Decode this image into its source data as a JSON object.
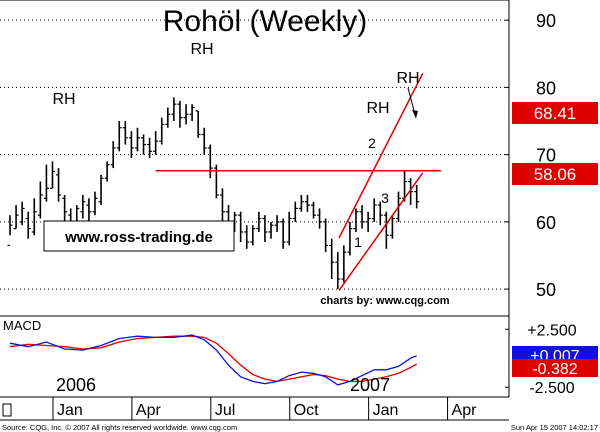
{
  "chart_data": {
    "type": "ohlc",
    "title": "Rohöl (Weekly)",
    "website": "www.ross-trading.de",
    "credit": "charts by: www.cqg.com",
    "footer_left": "Source: CQG, Inc. © 2007 All rights reserved worldwide. www.cqg.com",
    "footer_right": "Sun Apr 15 2007 14:02:17",
    "y_ticks": [
      90,
      80,
      70,
      60,
      50
    ],
    "ylim": [
      46,
      93
    ],
    "x_month_labels": [
      "Jan",
      "Apr",
      "Jul",
      "Oct",
      "Jan",
      "Apr"
    ],
    "year_labels": [
      "2006",
      "2007"
    ],
    "price_labels": [
      {
        "value": "68.41",
        "color": "#e00000"
      },
      {
        "value": "58.06",
        "color": "#e00000"
      }
    ],
    "annotations": [
      "RH",
      "RH",
      "RH",
      "RH",
      "1",
      "2",
      "3"
    ],
    "resistance_level": 67.6,
    "weekly_bars": [
      [
        56.5,
        59.5,
        61.0,
        58.0
      ],
      [
        59.0,
        61.0,
        62.5,
        59.0
      ],
      [
        60.0,
        62.0,
        63.0,
        59.5
      ],
      [
        60.5,
        59.0,
        61.5,
        57.5
      ],
      [
        58.5,
        61.5,
        63.5,
        58.0
      ],
      [
        61.0,
        64.0,
        66.0,
        60.5
      ],
      [
        63.5,
        65.0,
        68.5,
        63.0
      ],
      [
        65.0,
        67.5,
        69.0,
        65.0
      ],
      [
        67.0,
        64.0,
        68.0,
        63.0
      ],
      [
        63.5,
        61.5,
        64.0,
        60.0
      ],
      [
        61.0,
        60.0,
        62.0,
        58.5
      ],
      [
        60.0,
        62.0,
        62.5,
        59.0
      ],
      [
        61.5,
        63.0,
        64.0,
        60.5
      ],
      [
        62.5,
        61.5,
        63.5,
        60.0
      ],
      [
        61.5,
        63.5,
        64.5,
        61.0
      ],
      [
        63.0,
        66.5,
        67.0,
        62.5
      ],
      [
        66.5,
        68.5,
        69.0,
        66.0
      ],
      [
        68.5,
        71.0,
        72.0,
        68.0
      ],
      [
        71.0,
        74.0,
        75.0,
        70.5
      ],
      [
        74.0,
        72.5,
        75.0,
        71.5
      ],
      [
        72.5,
        71.0,
        73.5,
        69.5
      ],
      [
        71.0,
        72.5,
        74.0,
        70.5
      ],
      [
        72.5,
        71.5,
        73.0,
        70.0
      ],
      [
        71.5,
        70.5,
        72.5,
        69.5
      ],
      [
        70.5,
        72.0,
        73.5,
        70.0
      ],
      [
        72.0,
        74.5,
        75.5,
        71.5
      ],
      [
        74.5,
        76.0,
        77.0,
        74.0
      ],
      [
        76.0,
        77.5,
        78.5,
        75.0
      ],
      [
        77.5,
        75.5,
        78.0,
        74.0
      ],
      [
        75.5,
        76.0,
        77.5,
        74.5
      ],
      [
        76.0,
        77.0,
        77.5,
        75.0
      ],
      [
        76.5,
        73.0,
        76.5,
        72.5
      ],
      [
        73.0,
        71.0,
        74.0,
        70.0
      ],
      [
        71.0,
        68.0,
        71.5,
        66.5
      ],
      [
        68.0,
        64.0,
        68.5,
        63.5
      ],
      [
        64.0,
        61.5,
        65.0,
        60.0
      ],
      [
        61.5,
        59.5,
        62.5,
        58.5
      ],
      [
        59.5,
        61.0,
        61.5,
        58.5
      ],
      [
        61.0,
        58.5,
        61.5,
        57.0
      ],
      [
        58.5,
        57.0,
        59.5,
        56.0
      ],
      [
        57.0,
        59.0,
        59.5,
        56.5
      ],
      [
        59.0,
        60.5,
        61.5,
        58.5
      ],
      [
        60.5,
        58.5,
        61.0,
        57.0
      ],
      [
        58.5,
        59.5,
        60.0,
        57.5
      ],
      [
        59.5,
        60.0,
        61.0,
        58.5
      ],
      [
        60.0,
        57.0,
        60.5,
        56.0
      ],
      [
        57.0,
        60.5,
        61.5,
        56.5
      ],
      [
        60.5,
        62.0,
        63.0,
        60.0
      ],
      [
        62.0,
        63.0,
        64.0,
        61.5
      ],
      [
        63.0,
        62.5,
        64.0,
        61.5
      ],
      [
        62.5,
        61.0,
        63.0,
        60.5
      ],
      [
        61.0,
        60.0,
        62.0,
        59.0
      ],
      [
        60.0,
        56.5,
        60.5,
        55.5
      ],
      [
        56.5,
        54.0,
        57.5,
        51.5
      ],
      [
        54.0,
        51.5,
        55.5,
        50.0
      ],
      [
        51.5,
        55.5,
        56.5,
        51.0
      ],
      [
        55.5,
        59.0,
        60.0,
        55.0
      ],
      [
        59.0,
        61.5,
        62.0,
        58.5
      ],
      [
        61.5,
        60.0,
        62.5,
        59.0
      ],
      [
        60.0,
        60.5,
        61.5,
        58.5
      ],
      [
        60.5,
        62.5,
        63.5,
        60.0
      ],
      [
        62.5,
        61.0,
        63.0,
        59.5
      ],
      [
        61.0,
        58.0,
        61.5,
        56.0
      ],
      [
        58.0,
        60.5,
        61.0,
        57.5
      ],
      [
        60.5,
        63.5,
        64.5,
        60.0
      ],
      [
        63.5,
        66.0,
        67.5,
        63.0
      ],
      [
        66.0,
        64.5,
        66.5,
        62.5
      ],
      [
        64.5,
        63.0,
        65.5,
        62.0
      ]
    ],
    "channel_upper": [
      [
        54.2,
        57.6
      ],
      [
        68.0,
        82.1
      ]
    ],
    "channel_lower": [
      [
        54.2,
        49.8
      ],
      [
        68.0,
        67.3
      ]
    ],
    "macd": {
      "label": "MACD",
      "y_ticks": [
        "+2.500",
        "-2.500"
      ],
      "ylim": [
        -3.0,
        3.3
      ],
      "value_labels": [
        {
          "value": "+0.007",
          "color": "#1010e0"
        },
        {
          "value": "-0.382",
          "color": "#e00000"
        }
      ],
      "macd_line_color": "#1010e0",
      "signal_line_color": "#e00000",
      "macd_line": [
        [
          0,
          1.3
        ],
        [
          3,
          1.0
        ],
        [
          6,
          1.4
        ],
        [
          9,
          0.8
        ],
        [
          12,
          0.7
        ],
        [
          15,
          1.1
        ],
        [
          18,
          1.7
        ],
        [
          21,
          1.9
        ],
        [
          24,
          1.8
        ],
        [
          27,
          1.8
        ],
        [
          30,
          2.0
        ],
        [
          32,
          1.6
        ],
        [
          34,
          0.7
        ],
        [
          36,
          -0.6
        ],
        [
          38,
          -1.6
        ],
        [
          40,
          -2.0
        ],
        [
          42,
          -2.2
        ],
        [
          44,
          -2.0
        ],
        [
          46,
          -1.5
        ],
        [
          48,
          -1.2
        ],
        [
          50,
          -1.3
        ],
        [
          52,
          -1.6
        ],
        [
          54,
          -2.3
        ],
        [
          56,
          -2.0
        ],
        [
          58,
          -1.5
        ],
        [
          60,
          -1.0
        ],
        [
          62,
          -1.0
        ],
        [
          64,
          -0.7
        ],
        [
          66,
          0.0
        ],
        [
          67,
          0.2
        ]
      ],
      "signal_line": [
        [
          0,
          1.0
        ],
        [
          3,
          1.2
        ],
        [
          6,
          1.1
        ],
        [
          9,
          1.0
        ],
        [
          12,
          0.8
        ],
        [
          15,
          0.9
        ],
        [
          18,
          1.4
        ],
        [
          21,
          1.7
        ],
        [
          24,
          1.8
        ],
        [
          27,
          1.9
        ],
        [
          30,
          1.9
        ],
        [
          32,
          1.8
        ],
        [
          34,
          1.3
        ],
        [
          36,
          0.4
        ],
        [
          38,
          -0.6
        ],
        [
          40,
          -1.4
        ],
        [
          42,
          -1.8
        ],
        [
          44,
          -2.0
        ],
        [
          46,
          -1.8
        ],
        [
          48,
          -1.6
        ],
        [
          50,
          -1.4
        ],
        [
          52,
          -1.5
        ],
        [
          54,
          -1.8
        ],
        [
          56,
          -2.0
        ],
        [
          58,
          -2.0
        ],
        [
          60,
          -1.8
        ],
        [
          62,
          -1.6
        ],
        [
          64,
          -1.3
        ],
        [
          66,
          -0.8
        ],
        [
          67,
          -0.5
        ]
      ]
    }
  }
}
